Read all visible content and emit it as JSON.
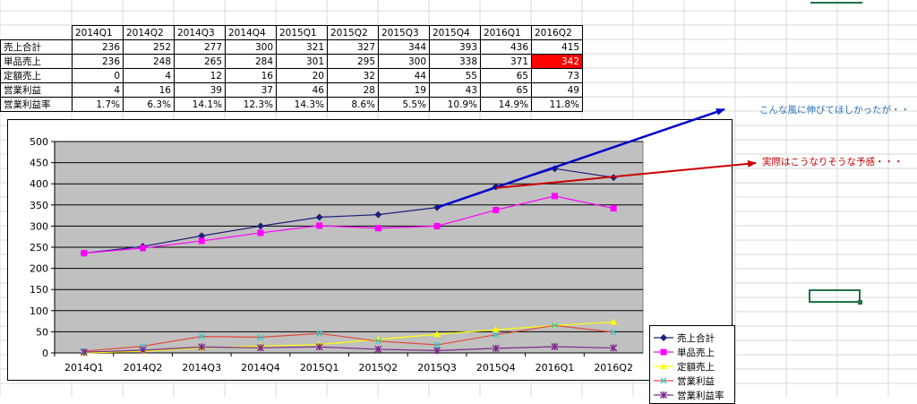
{
  "sheet": {
    "headers": [
      "2014Q1",
      "2014Q2",
      "2014Q3",
      "2014Q4",
      "2015Q1",
      "2015Q2",
      "2015Q3",
      "2015Q4",
      "2016Q1",
      "2016Q2"
    ],
    "rows": [
      {
        "label": "売上合計",
        "values": [
          "236",
          "252",
          "277",
          "300",
          "321",
          "327",
          "344",
          "393",
          "436",
          "415"
        ]
      },
      {
        "label": "単品売上",
        "values": [
          "236",
          "248",
          "265",
          "284",
          "301",
          "295",
          "300",
          "338",
          "371",
          "342"
        ]
      },
      {
        "label": "定額売上",
        "values": [
          "0",
          "4",
          "12",
          "16",
          "20",
          "32",
          "44",
          "55",
          "65",
          "73"
        ]
      },
      {
        "label": "営業利益",
        "values": [
          "4",
          "16",
          "39",
          "37",
          "46",
          "28",
          "19",
          "43",
          "65",
          "49"
        ]
      },
      {
        "label": "営業利益率",
        "values": [
          "1.7%",
          "6.3%",
          "14.1%",
          "12.3%",
          "14.3%",
          "8.6%",
          "5.5%",
          "10.9%",
          "14.9%",
          "11.8%"
        ]
      }
    ],
    "highlight_color": "#ff0000"
  },
  "chart_data": {
    "type": "line",
    "categories": [
      "2014Q1",
      "2014Q2",
      "2014Q3",
      "2014Q4",
      "2015Q1",
      "2015Q2",
      "2015Q3",
      "2015Q4",
      "2016Q1",
      "2016Q2"
    ],
    "yticks": [
      "0",
      "50",
      "100",
      "150",
      "200",
      "250",
      "300",
      "350",
      "400",
      "450",
      "500"
    ],
    "ylim": [
      0,
      500
    ],
    "grid": true,
    "legend_placement": "right",
    "plot_bg": "#c0c0c0",
    "series": [
      {
        "name": "売上合計",
        "color": "#1f1f7a",
        "marker": "diamond",
        "values": [
          236,
          252,
          277,
          300,
          321,
          327,
          344,
          393,
          436,
          415
        ]
      },
      {
        "name": "単品売上",
        "color": "#ff00ff",
        "marker": "square",
        "values": [
          236,
          248,
          265,
          284,
          301,
          295,
          300,
          338,
          371,
          342
        ]
      },
      {
        "name": "定額売上",
        "color": "#ffff00",
        "marker": "triangle",
        "values": [
          0,
          4,
          12,
          16,
          20,
          32,
          44,
          55,
          65,
          73
        ]
      },
      {
        "name": "営業利益",
        "color": "#e04a3a",
        "marker": "x",
        "markerColor": "#33cccc",
        "values": [
          4,
          16,
          39,
          37,
          46,
          28,
          19,
          43,
          65,
          49
        ]
      },
      {
        "name": "営業利益率",
        "color": "#7a2a8a",
        "marker": "star",
        "values": [
          1.7,
          6.3,
          14.1,
          12.3,
          14.3,
          8.6,
          5.5,
          10.9,
          14.9,
          11.8
        ]
      }
    ],
    "annotations": [
      {
        "text": "こんな風に伸びてほしかったが・・",
        "color": "#2e74b5",
        "line_color": "#0000cc",
        "from": [
          "2015Q3",
          344
        ]
      },
      {
        "text": "実際はこうなりそうな予感・・・",
        "color": "#c00000",
        "line_color": "#cc0000",
        "from": [
          "2015Q4",
          390
        ]
      }
    ]
  }
}
